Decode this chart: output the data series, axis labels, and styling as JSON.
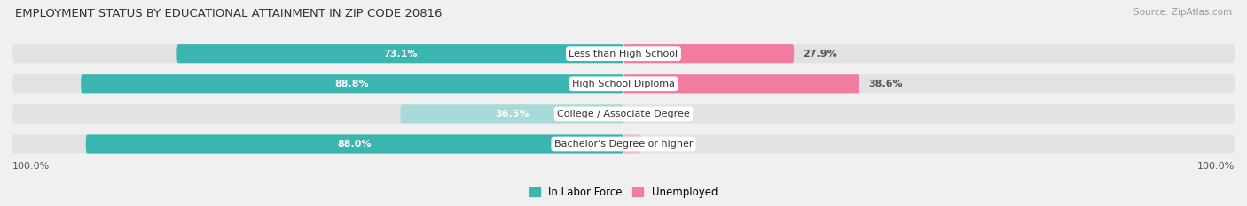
{
  "title": "EMPLOYMENT STATUS BY EDUCATIONAL ATTAINMENT IN ZIP CODE 20816",
  "source": "Source: ZipAtlas.com",
  "categories": [
    "Less than High School",
    "High School Diploma",
    "College / Associate Degree",
    "Bachelor's Degree or higher"
  ],
  "labor_force": [
    73.1,
    88.8,
    36.5,
    88.0
  ],
  "unemployed": [
    27.9,
    38.6,
    0.0,
    2.7
  ],
  "labor_force_color_dark": "#3ab5b0",
  "labor_force_color_light": "#a8dada",
  "unemployed_color_dark": "#f07ca0",
  "unemployed_color_light": "#f5b8cb",
  "axis_label_left": "100.0%",
  "axis_label_right": "100.0%",
  "legend_lf": "In Labor Force",
  "legend_unemp": "Unemployed",
  "background_color": "#f0f0f0",
  "bar_bg_color": "#e2e2e2",
  "title_fontsize": 9.5,
  "source_fontsize": 7.5,
  "bar_label_fontsize": 8,
  "category_fontsize": 8,
  "legend_fontsize": 8.5,
  "lf_white_threshold": 15,
  "unemp_outside_threshold": 12
}
